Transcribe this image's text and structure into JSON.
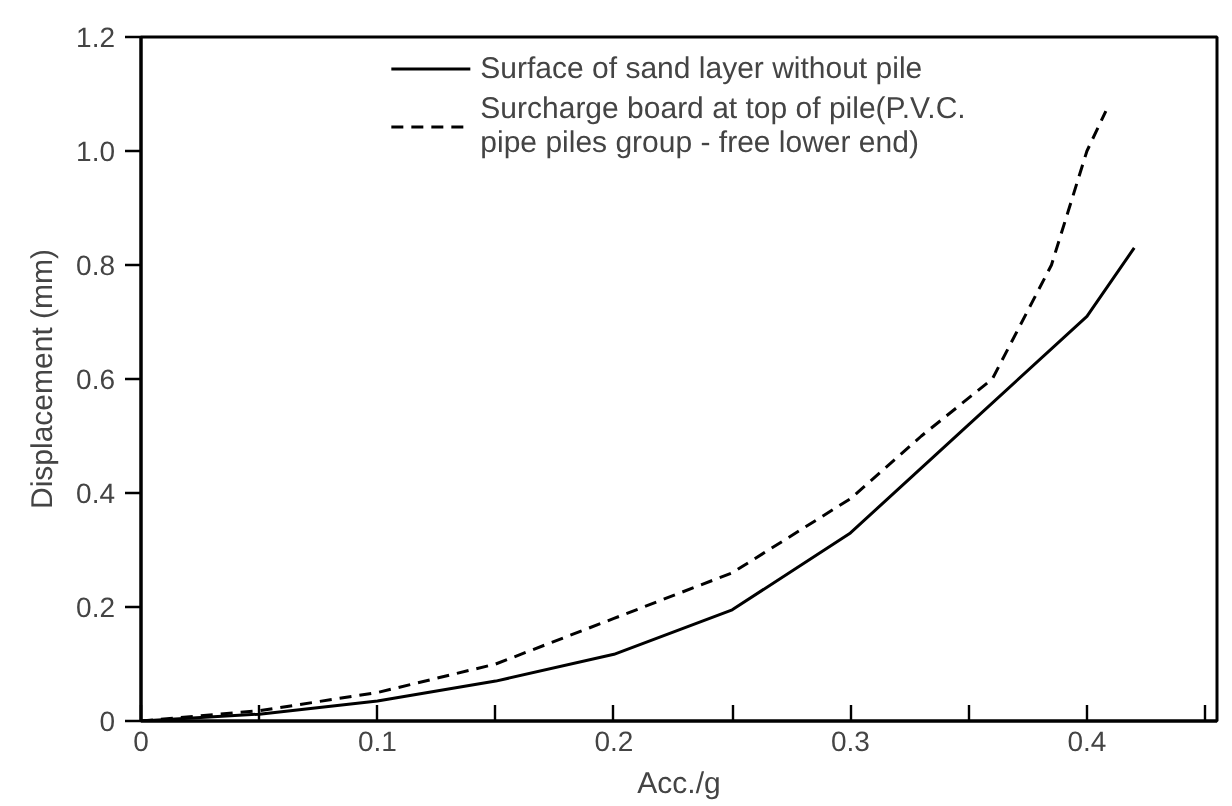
{
  "chart_data": {
    "type": "line",
    "xlabel": "Acc./g",
    "ylabel": "Displacement (mm)",
    "xlim": [
      0,
      0.455
    ],
    "ylim": [
      0,
      1.2
    ],
    "xticks": [
      0,
      {
        "value": 0.05,
        "label": null
      },
      0.1,
      {
        "value": 0.15,
        "label": null
      },
      0.2,
      {
        "value": 0.25,
        "label": null
      },
      0.3,
      {
        "value": 0.35,
        "label": null
      },
      0.4,
      {
        "value": 0.45,
        "label": null
      }
    ],
    "yticks": [
      0,
      0.2,
      0.4,
      0.6,
      0.8,
      {
        "value": 1.0,
        "label": "1.0"
      },
      {
        "value": 1.2,
        "label": "1.2"
      }
    ],
    "grid": false,
    "legend": "top",
    "marker": "none",
    "series": [
      {
        "name": "Surface of sand layer without pile",
        "color": "#000000",
        "line_style": "solid",
        "x": [
          0,
          0.05,
          0.1,
          0.15,
          0.2,
          0.25,
          0.3,
          0.35,
          0.4,
          0.42
        ],
        "values": [
          0,
          0.012,
          0.035,
          0.07,
          0.117,
          0.195,
          0.33,
          0.52,
          0.71,
          0.83
        ]
      },
      {
        "name": "Surcharge board at top of pile(P.V.C.\npipe piles group - free lower end)",
        "color": "#000000",
        "line_style": "dashed",
        "x": [
          0,
          0.05,
          0.1,
          0.15,
          0.2,
          0.25,
          0.3,
          0.33,
          0.36,
          0.385,
          0.4,
          0.408
        ],
        "values": [
          0,
          0.018,
          0.05,
          0.1,
          0.18,
          0.26,
          0.39,
          0.5,
          0.6,
          0.8,
          1.0,
          1.07
        ]
      }
    ]
  }
}
